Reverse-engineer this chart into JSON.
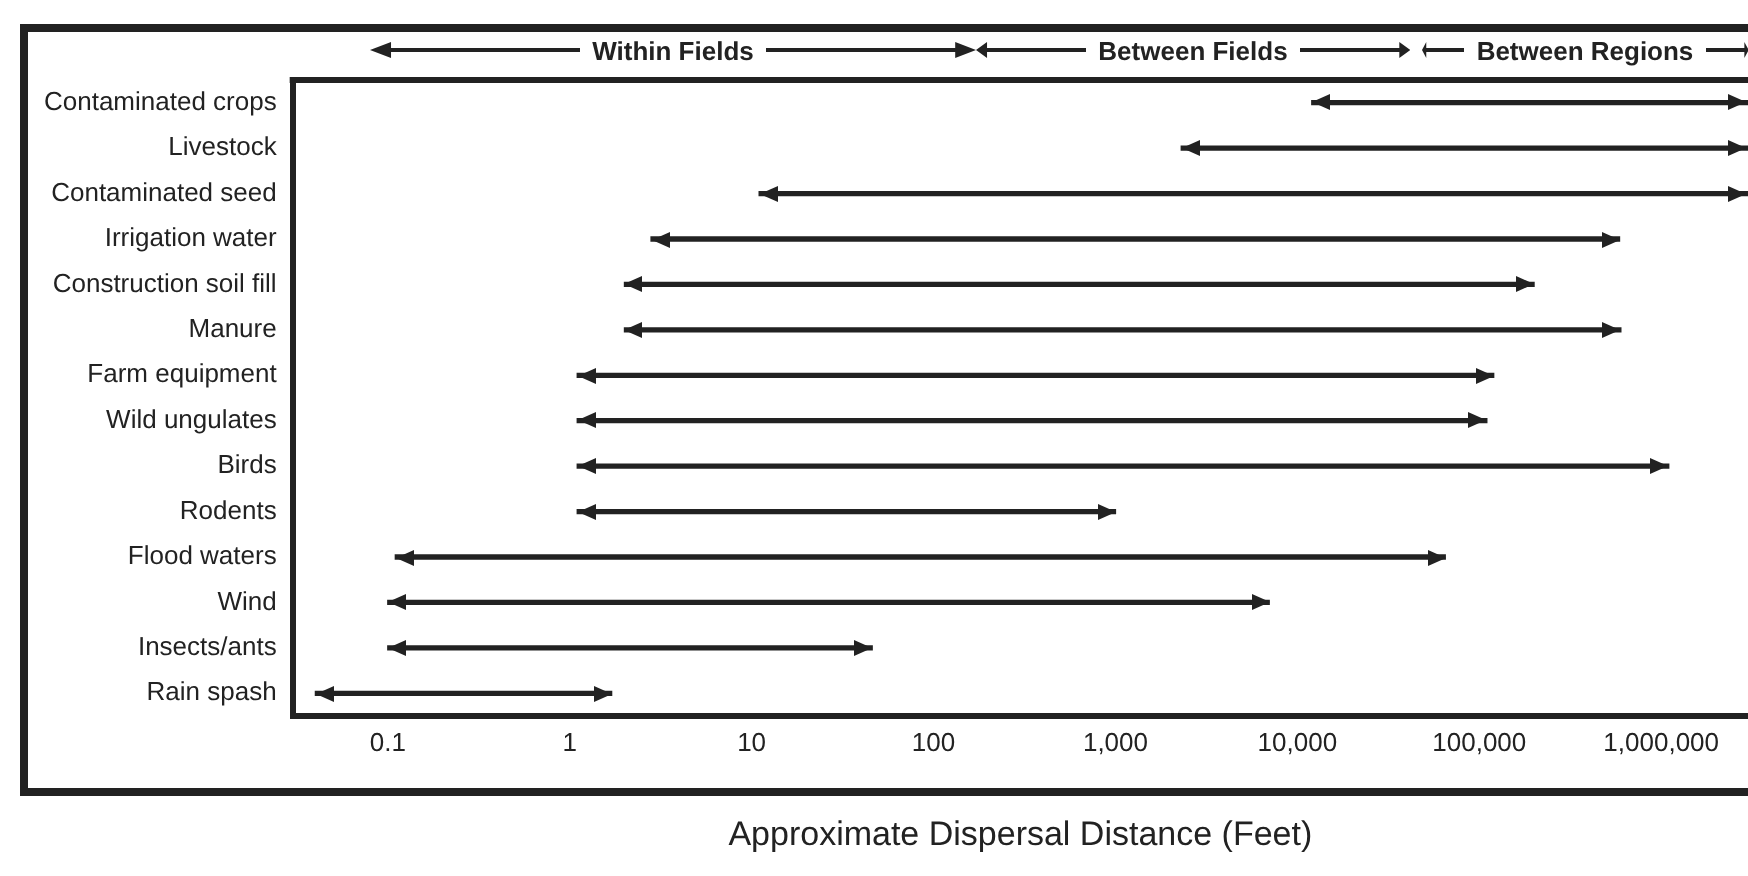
{
  "chart_data": {
    "type": "bar",
    "orientation": "horizontal",
    "xlabel": "Approximate Dispersal Distance (Feet)",
    "categories": [
      "Contaminated crops",
      "Livestock",
      "Contaminated seed",
      "Irrigation water",
      "Construction soil fill",
      "Manure",
      "Farm equipment",
      "Wild ungulates",
      "Birds",
      "Rodents",
      "Flood waters",
      "Wind",
      "Insects/ants",
      "Rain spash"
    ],
    "base": [
      12000,
      2300,
      11,
      2.8,
      2,
      2,
      1.1,
      1.1,
      1.1,
      1.1,
      0.11,
      0.1,
      0.1,
      0.04
    ],
    "values": [
      2988000,
      2997700,
      2999989,
      589997.2,
      199998,
      599998,
      119998.9,
      109998.9,
      1099998.9,
      998.9,
      64999.89,
      6999.9,
      45.9,
      1.66
    ],
    "color": "#222222",
    "log": "x",
    "xlim": [
      0.03,
      3000000
    ],
    "xticks": [
      0.1,
      1,
      10,
      100,
      {
        "value": 1000,
        "label": "1,000"
      },
      {
        "value": 10000,
        "label": "10,000"
      },
      {
        "value": 100000,
        "label": "100,000"
      },
      {
        "value": 1000000,
        "label": "1,000,000"
      }
    ],
    "grid": false,
    "annotations": [
      "Within Fields",
      "Between Fields",
      "Between Regions"
    ]
  }
}
